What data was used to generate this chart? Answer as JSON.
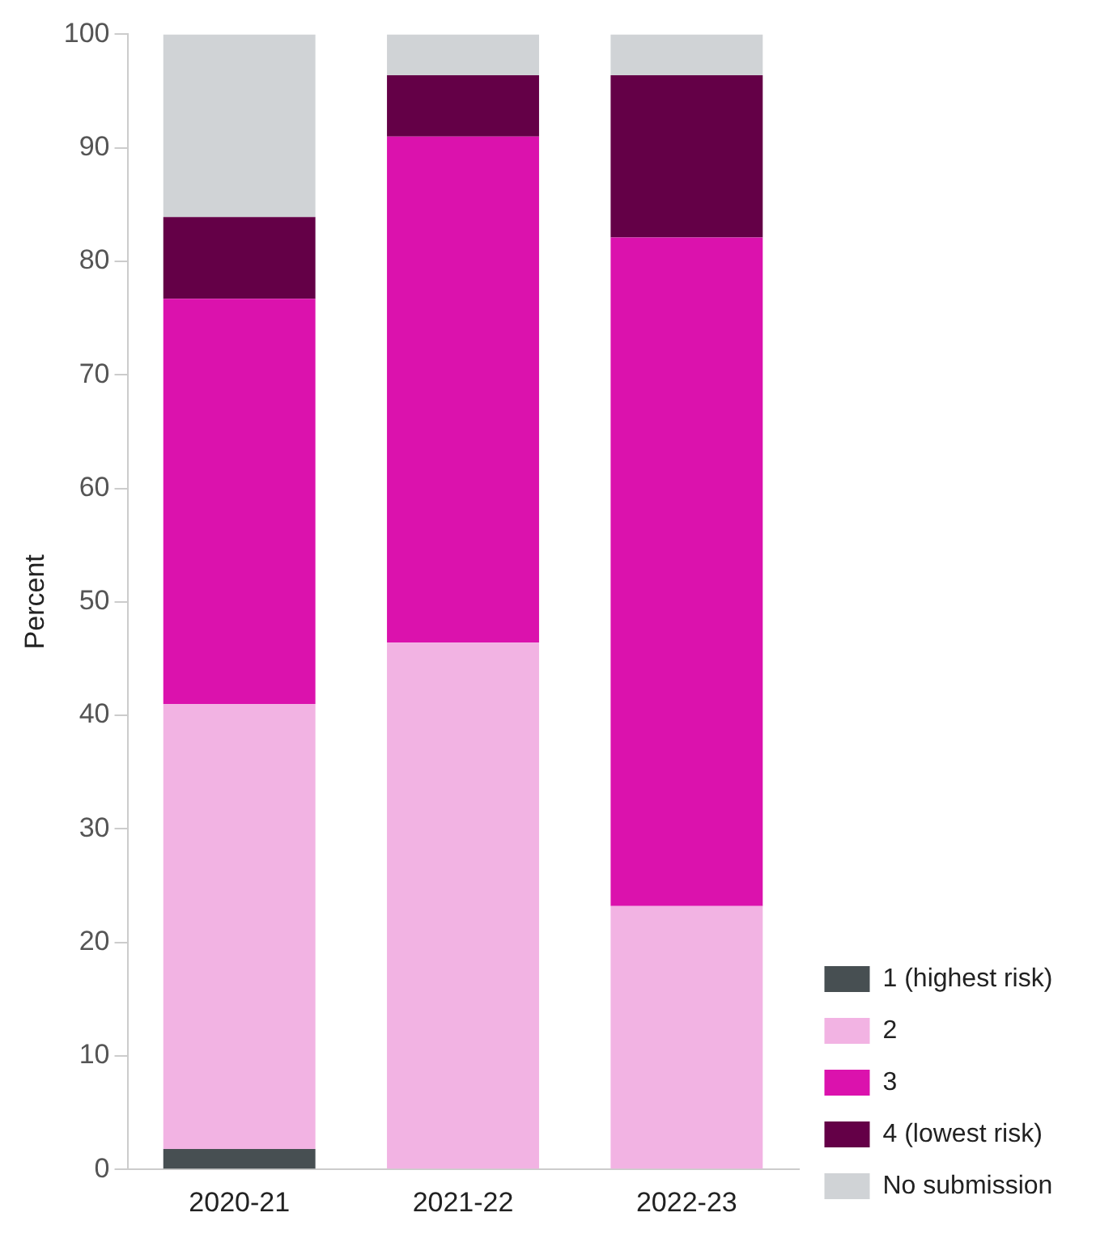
{
  "chart_data": {
    "type": "bar",
    "ylabel": "Percent",
    "categories": [
      "2020-21",
      "2021-22",
      "2022-23"
    ],
    "stacked": true,
    "ylim": [
      0,
      100
    ],
    "yticks": [
      0,
      10,
      20,
      30,
      40,
      50,
      60,
      70,
      80,
      90,
      100
    ],
    "grid": false,
    "legend": "bottom right",
    "series": [
      {
        "name": "1 (highest risk)",
        "color": "#474f52",
        "values": [
          1.8,
          0,
          0
        ]
      },
      {
        "name": "2",
        "color": "#f2b3e3",
        "values": [
          39.2,
          46.4,
          23.2
        ]
      },
      {
        "name": "3",
        "color": "#db12ad",
        "values": [
          35.7,
          44.6,
          58.9
        ]
      },
      {
        "name": "4 (lowest risk)",
        "color": "#640047",
        "values": [
          7.2,
          5.4,
          14.3
        ]
      },
      {
        "name": "No submission",
        "color": "#d0d3d6",
        "values": [
          16.1,
          3.6,
          3.6
        ]
      }
    ]
  }
}
